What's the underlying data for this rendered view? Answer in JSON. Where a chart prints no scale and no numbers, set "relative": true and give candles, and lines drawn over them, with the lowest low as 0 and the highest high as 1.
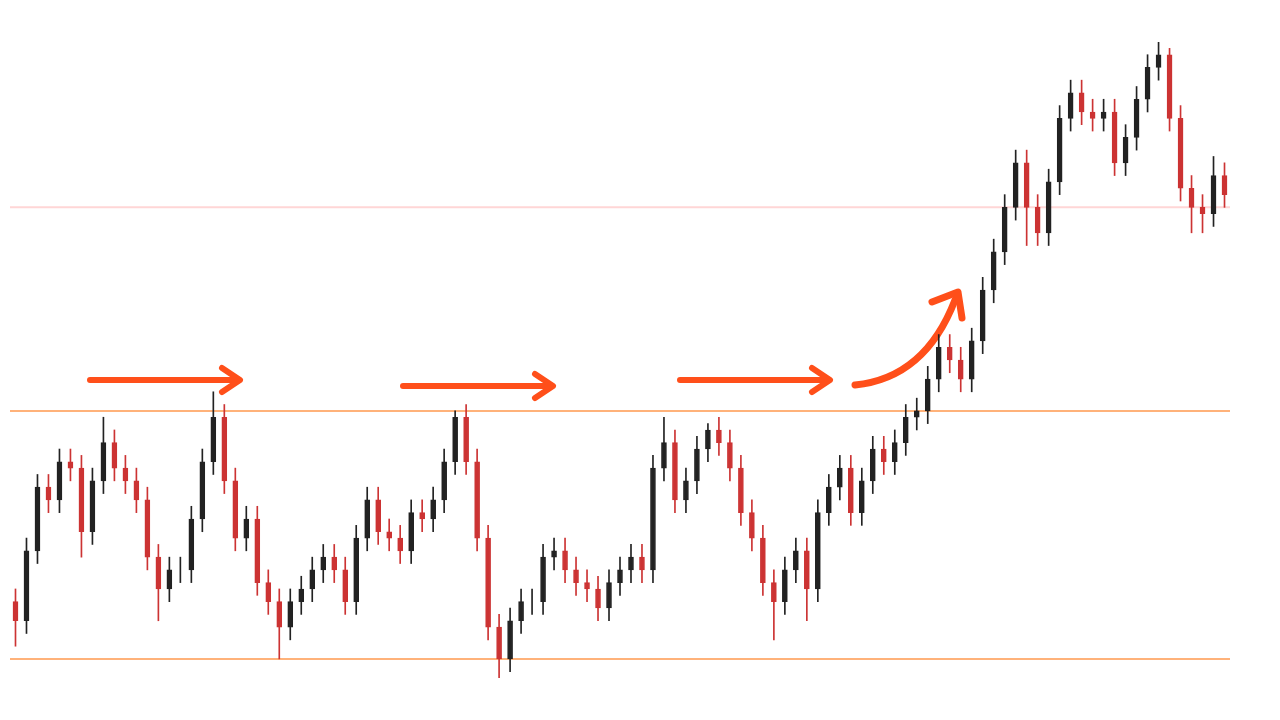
{
  "chart_data": {
    "type": "candlestick",
    "relative": true,
    "colors": [
      "#cc3333",
      "#222222",
      "#222222",
      "#cc3333",
      "#222222",
      "#cc3333",
      "#cc3333",
      "#222222",
      "#222222",
      "#cc3333",
      "#cc3333",
      "#cc3333",
      "#cc3333",
      "#cc3333",
      "#222222",
      "#222222",
      "#222222",
      "#222222",
      "#222222",
      "#cc3333",
      "#cc3333",
      "#222222",
      "#cc3333",
      "#cc3333",
      "#cc3333",
      "#222222",
      "#222222",
      "#222222",
      "#222222",
      "#cc3333",
      "#cc3333",
      "#222222",
      "#222222",
      "#cc3333",
      "#cc3333",
      "#cc3333",
      "#222222",
      "#cc3333",
      "#222222",
      "#222222",
      "#222222",
      "#cc3333",
      "#cc3333",
      "#cc3333",
      "#cc3333",
      "#222222",
      "#222222",
      "#222222",
      "#222222",
      "#222222",
      "#cc3333",
      "#cc3333",
      "#cc3333",
      "#cc3333",
      "#222222",
      "#222222",
      "#222222",
      "#cc3333",
      "#222222",
      "#222222",
      "#cc3333",
      "#222222",
      "#222222",
      "#222222",
      "#cc3333",
      "#cc3333",
      "#cc3333",
      "#cc3333",
      "#cc3333",
      "#cc3333",
      "#222222",
      "#222222",
      "#cc3333",
      "#222222",
      "#222222",
      "#222222",
      "#cc3333",
      "#222222",
      "#222222",
      "#cc3333",
      "#222222",
      "#222222",
      "#222222",
      "#222222",
      "#222222",
      "#cc3333",
      "#cc3333",
      "#222222",
      "#222222",
      "#222222",
      "#222222",
      "#222222",
      "#cc3333",
      "#cc3333",
      "#222222",
      "#222222",
      "#222222",
      "#cc3333",
      "#cc3333",
      "#222222",
      "#cc3333",
      "#222222",
      "#222222",
      "#222222",
      "#222222",
      "#cc3333",
      "#cc3333",
      "#cc3333",
      "#cc3333",
      "#222222",
      "#cc3333"
    ],
    "categories": [
      null,
      null,
      null,
      null,
      null,
      null,
      null,
      null,
      null,
      null,
      null,
      null,
      null,
      null,
      null,
      null,
      null,
      null,
      null,
      null,
      null,
      null,
      null,
      null,
      null,
      null,
      null,
      null,
      null,
      null,
      null,
      null,
      null,
      null,
      null,
      null,
      null,
      null,
      null,
      null,
      null,
      null,
      null,
      null,
      null,
      null,
      null,
      null,
      null,
      null,
      null,
      null,
      null,
      null,
      null,
      null,
      null,
      null,
      null,
      null,
      null,
      null,
      null,
      null,
      null,
      null,
      null,
      null,
      null,
      null,
      null,
      null,
      null,
      null,
      null,
      null,
      null,
      null,
      null,
      null,
      null,
      null,
      null,
      null,
      null,
      null,
      null,
      null,
      null,
      null,
      null,
      null,
      null,
      null,
      null,
      null,
      null,
      null,
      null,
      null,
      null,
      null,
      null,
      null,
      null,
      null,
      null,
      null,
      null,
      null,
      null
    ],
    "ohlc": [
      [
        0.12,
        0.14,
        0.05,
        0.09
      ],
      [
        0.09,
        0.22,
        0.07,
        0.2
      ],
      [
        0.2,
        0.32,
        0.18,
        0.3
      ],
      [
        0.3,
        0.32,
        0.26,
        0.28
      ],
      [
        0.28,
        0.36,
        0.26,
        0.34
      ],
      [
        0.34,
        0.36,
        0.31,
        0.33
      ],
      [
        0.33,
        0.35,
        0.19,
        0.23
      ],
      [
        0.23,
        0.33,
        0.21,
        0.31
      ],
      [
        0.31,
        0.41,
        0.29,
        0.37
      ],
      [
        0.37,
        0.39,
        0.31,
        0.33
      ],
      [
        0.33,
        0.35,
        0.29,
        0.31
      ],
      [
        0.31,
        0.33,
        0.26,
        0.28
      ],
      [
        0.28,
        0.3,
        0.17,
        0.19
      ],
      [
        0.19,
        0.21,
        0.09,
        0.14
      ],
      [
        0.14,
        0.19,
        0.12,
        0.17
      ],
      [
        0.17,
        0.19,
        0.15,
        0.17
      ],
      [
        0.17,
        0.27,
        0.15,
        0.25
      ],
      [
        0.25,
        0.36,
        0.23,
        0.34
      ],
      [
        0.34,
        0.45,
        0.32,
        0.41
      ],
      [
        0.41,
        0.43,
        0.29,
        0.31
      ],
      [
        0.31,
        0.33,
        0.2,
        0.22
      ],
      [
        0.22,
        0.27,
        0.2,
        0.25
      ],
      [
        0.25,
        0.27,
        0.13,
        0.15
      ],
      [
        0.15,
        0.17,
        0.1,
        0.12
      ],
      [
        0.12,
        0.14,
        0.03,
        0.08
      ],
      [
        0.08,
        0.14,
        0.06,
        0.12
      ],
      [
        0.12,
        0.16,
        0.1,
        0.14
      ],
      [
        0.14,
        0.19,
        0.12,
        0.17
      ],
      [
        0.17,
        0.21,
        0.15,
        0.19
      ],
      [
        0.19,
        0.21,
        0.15,
        0.17
      ],
      [
        0.17,
        0.19,
        0.1,
        0.12
      ],
      [
        0.12,
        0.24,
        0.1,
        0.22
      ],
      [
        0.22,
        0.3,
        0.2,
        0.28
      ],
      [
        0.28,
        0.3,
        0.21,
        0.23
      ],
      [
        0.23,
        0.25,
        0.2,
        0.22
      ],
      [
        0.22,
        0.24,
        0.18,
        0.2
      ],
      [
        0.2,
        0.28,
        0.18,
        0.26
      ],
      [
        0.26,
        0.28,
        0.23,
        0.25
      ],
      [
        0.25,
        0.3,
        0.23,
        0.28
      ],
      [
        0.28,
        0.36,
        0.26,
        0.34
      ],
      [
        0.34,
        0.42,
        0.32,
        0.41
      ],
      [
        0.41,
        0.43,
        0.32,
        0.34
      ],
      [
        0.34,
        0.36,
        0.2,
        0.22
      ],
      [
        0.22,
        0.24,
        0.06,
        0.08
      ],
      [
        0.08,
        0.1,
        0,
        0.03
      ],
      [
        0.03,
        0.11,
        0.01,
        0.09
      ],
      [
        0.09,
        0.14,
        0.07,
        0.12
      ],
      [
        0.12,
        0.14,
        0.1,
        0.12
      ],
      [
        0.12,
        0.21,
        0.1,
        0.19
      ],
      [
        0.19,
        0.22,
        0.17,
        0.2
      ],
      [
        0.2,
        0.22,
        0.15,
        0.17
      ],
      [
        0.17,
        0.19,
        0.13,
        0.15
      ],
      [
        0.15,
        0.17,
        0.12,
        0.14
      ],
      [
        0.14,
        0.16,
        0.09,
        0.11
      ],
      [
        0.11,
        0.17,
        0.09,
        0.15
      ],
      [
        0.15,
        0.19,
        0.13,
        0.17
      ],
      [
        0.17,
        0.21,
        0.15,
        0.19
      ],
      [
        0.19,
        0.21,
        0.15,
        0.17
      ],
      [
        0.17,
        0.35,
        0.15,
        0.33
      ],
      [
        0.33,
        0.41,
        0.31,
        0.37
      ],
      [
        0.37,
        0.39,
        0.26,
        0.28
      ],
      [
        0.28,
        0.33,
        0.26,
        0.31
      ],
      [
        0.31,
        0.38,
        0.29,
        0.36
      ],
      [
        0.36,
        0.4,
        0.34,
        0.39
      ],
      [
        0.39,
        0.41,
        0.35,
        0.37
      ],
      [
        0.37,
        0.39,
        0.31,
        0.33
      ],
      [
        0.33,
        0.35,
        0.24,
        0.26
      ],
      [
        0.26,
        0.28,
        0.2,
        0.22
      ],
      [
        0.22,
        0.24,
        0.13,
        0.15
      ],
      [
        0.15,
        0.17,
        0.06,
        0.12
      ],
      [
        0.12,
        0.19,
        0.1,
        0.17
      ],
      [
        0.17,
        0.22,
        0.15,
        0.2
      ],
      [
        0.2,
        0.22,
        0.09,
        0.14
      ],
      [
        0.14,
        0.28,
        0.12,
        0.26
      ],
      [
        0.26,
        0.32,
        0.24,
        0.3
      ],
      [
        0.3,
        0.35,
        0.28,
        0.33
      ],
      [
        0.33,
        0.35,
        0.24,
        0.26
      ],
      [
        0.26,
        0.33,
        0.24,
        0.31
      ],
      [
        0.31,
        0.38,
        0.29,
        0.36
      ],
      [
        0.36,
        0.38,
        0.32,
        0.34
      ],
      [
        0.34,
        0.39,
        0.32,
        0.37
      ],
      [
        0.37,
        0.43,
        0.35,
        0.41
      ],
      [
        0.41,
        0.44,
        0.39,
        0.42
      ],
      [
        0.42,
        0.49,
        0.4,
        0.47
      ],
      [
        0.47,
        0.54,
        0.45,
        0.52
      ],
      [
        0.52,
        0.54,
        0.48,
        0.5
      ],
      [
        0.5,
        0.52,
        0.45,
        0.47
      ],
      [
        0.47,
        0.55,
        0.45,
        0.53
      ],
      [
        0.53,
        0.63,
        0.51,
        0.61
      ],
      [
        0.61,
        0.69,
        0.59,
        0.67
      ],
      [
        0.67,
        0.76,
        0.65,
        0.74
      ],
      [
        0.74,
        0.83,
        0.72,
        0.81
      ],
      [
        0.81,
        0.83,
        0.68,
        0.74
      ],
      [
        0.74,
        0.76,
        0.68,
        0.7
      ],
      [
        0.7,
        0.8,
        0.68,
        0.78
      ],
      [
        0.78,
        0.9,
        0.76,
        0.88
      ],
      [
        0.88,
        0.94,
        0.86,
        0.92
      ],
      [
        0.92,
        0.94,
        0.87,
        0.89
      ],
      [
        0.89,
        0.91,
        0.86,
        0.88
      ],
      [
        0.88,
        0.91,
        0.86,
        0.89
      ],
      [
        0.89,
        0.91,
        0.79,
        0.81
      ],
      [
        0.81,
        0.87,
        0.79,
        0.85
      ],
      [
        0.85,
        0.93,
        0.83,
        0.91
      ],
      [
        0.91,
        0.98,
        0.89,
        0.96
      ],
      [
        0.96,
        1,
        0.94,
        0.98
      ],
      [
        0.98,
        0.99,
        0.86,
        0.88
      ],
      [
        0.88,
        0.9,
        0.75,
        0.77
      ],
      [
        0.77,
        0.79,
        0.7,
        0.74
      ],
      [
        0.74,
        0.76,
        0.7,
        0.73
      ],
      [
        0.73,
        0.82,
        0.71,
        0.79
      ],
      [
        0.79,
        0.81,
        0.74,
        0.76
      ]
    ],
    "ref_lines": [
      {
        "axis": "y",
        "value": 0.42,
        "color": "#ffb27a"
      },
      {
        "axis": "y",
        "value": 0.03,
        "color": "#ffb27a"
      },
      {
        "axis": "y",
        "value": 0.74,
        "color": "#ffd6d6"
      }
    ]
  }
}
